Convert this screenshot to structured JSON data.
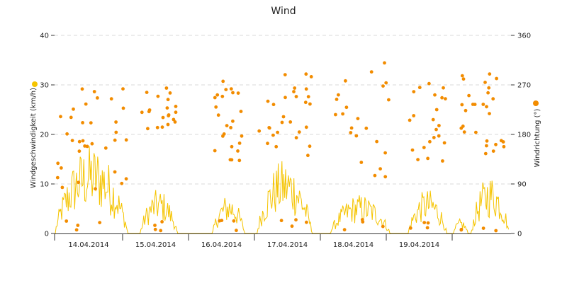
{
  "chart_data": {
    "type": "line+scatter",
    "title": "Wind",
    "x_labels": [
      "14.04.2014",
      "15.04.2014",
      "16.04.2014",
      "17.04.2014",
      "18.04.2014",
      "19.04.2014"
    ],
    "y_left": {
      "label": "Windgeschwindigkeit (km/h)",
      "range": [
        0,
        40
      ],
      "ticks": [
        "0",
        "10",
        "20",
        "30",
        "40"
      ]
    },
    "y_right": {
      "label": "Windrichtung (°)",
      "range": [
        0,
        360
      ],
      "ticks": [
        "0",
        "90",
        "180",
        "270",
        "360"
      ]
    },
    "grid": true,
    "colors": {
      "speed": "#f5c400",
      "direction": "#f28c00",
      "speed_marker": "#f5c400",
      "direction_marker": "#f28c00"
    },
    "series": [
      {
        "type": "line",
        "axis": "left"
      },
      {
        "type": "scatter",
        "axis": "right"
      }
    ]
  }
}
